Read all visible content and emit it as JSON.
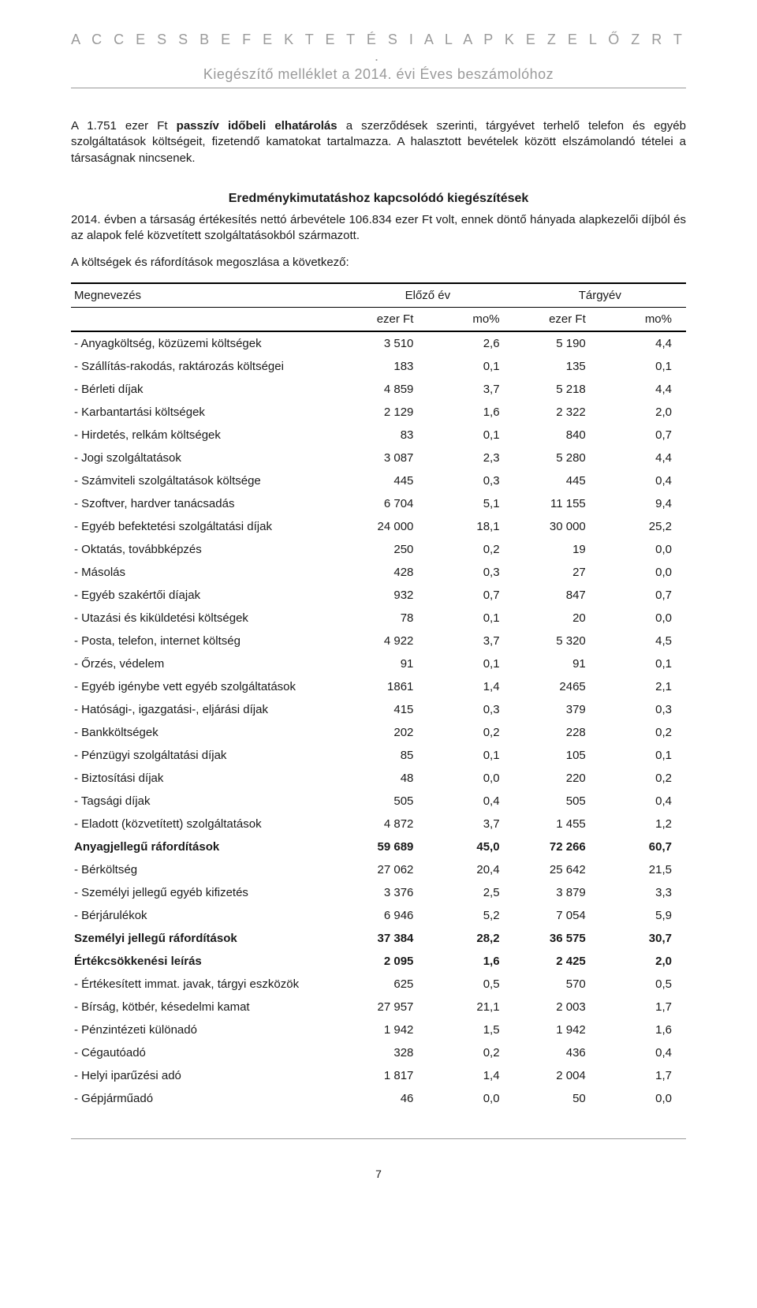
{
  "header": {
    "title": "A C C E S S   B E F E K T E T É S I   A L A P K E Z E L Ő   Z R T .",
    "subtitle": "Kiegészítő melléklet a 2014. évi Éves beszámolóhoz"
  },
  "body": {
    "para1_prefix": "A 1.751 ezer Ft ",
    "para1_bold": "passzív időbeli elhatárolás",
    "para1_suffix": " a szerződések szerinti, tárgyévet terhelő telefon és egyéb szolgáltatások költségeit, fizetendő kamatokat tartalmazza. A halasztott bevételek között elszámolandó tételei a társaságnak nincsenek.",
    "section_title": "Eredménykimutatáshoz kapcsolódó kiegészítések",
    "para2": "2014. évben a társaság értékesítés nettó árbevétele 106.834 ezer Ft volt, ennek döntő hányada alapkezelői díjból és az alapok felé közvetített szolgáltatásokból származott.",
    "para3": "A költségek és ráfordítások megoszlása a következő:"
  },
  "table": {
    "columns": {
      "name": "Megnevezés",
      "prev": "Előző év",
      "curr": "Tárgyév",
      "unit1": "ezer Ft",
      "pct1": "mo%",
      "unit2": "ezer Ft",
      "pct2": "mo%"
    },
    "col_widths": [
      "44%",
      "14%",
      "14%",
      "14%",
      "14%"
    ],
    "rows": [
      {
        "name": "- Anyagköltség, közüzemi költségek",
        "p_val": "3 510",
        "p_pct": "2,6",
        "c_val": "5 190",
        "c_pct": "4,4"
      },
      {
        "name": "- Szállítás-rakodás, raktározás költségei",
        "p_val": "183",
        "p_pct": "0,1",
        "c_val": "135",
        "c_pct": "0,1"
      },
      {
        "name": "- Bérleti díjak",
        "p_val": "4 859",
        "p_pct": "3,7",
        "c_val": "5 218",
        "c_pct": "4,4"
      },
      {
        "name": "- Karbantartási költségek",
        "p_val": "2 129",
        "p_pct": "1,6",
        "c_val": "2 322",
        "c_pct": "2,0"
      },
      {
        "name": "- Hirdetés, relkám költségek",
        "p_val": "83",
        "p_pct": "0,1",
        "c_val": "840",
        "c_pct": "0,7"
      },
      {
        "name": "- Jogi szolgáltatások",
        "p_val": "3 087",
        "p_pct": "2,3",
        "c_val": "5 280",
        "c_pct": "4,4"
      },
      {
        "name": "- Számviteli szolgáltatások költsége",
        "p_val": "445",
        "p_pct": "0,3",
        "c_val": "445",
        "c_pct": "0,4"
      },
      {
        "name": "- Szoftver, hardver tanácsadás",
        "p_val": "6 704",
        "p_pct": "5,1",
        "c_val": "11 155",
        "c_pct": "9,4"
      },
      {
        "name": "- Egyéb befektetési szolgáltatási díjak",
        "p_val": "24 000",
        "p_pct": "18,1",
        "c_val": "30 000",
        "c_pct": "25,2"
      },
      {
        "name": "- Oktatás, továbbképzés",
        "p_val": "250",
        "p_pct": "0,2",
        "c_val": "19",
        "c_pct": "0,0"
      },
      {
        "name": "- Másolás",
        "p_val": "428",
        "p_pct": "0,3",
        "c_val": "27",
        "c_pct": "0,0"
      },
      {
        "name": "- Egyéb szakértői díajak",
        "p_val": "932",
        "p_pct": "0,7",
        "c_val": "847",
        "c_pct": "0,7"
      },
      {
        "name": "- Utazási és kiküldetési költségek",
        "p_val": "78",
        "p_pct": "0,1",
        "c_val": "20",
        "c_pct": "0,0"
      },
      {
        "name": "- Posta, telefon, internet költség",
        "p_val": "4 922",
        "p_pct": "3,7",
        "c_val": "5 320",
        "c_pct": "4,5"
      },
      {
        "name": "- Őrzés, védelem",
        "p_val": "91",
        "p_pct": "0,1",
        "c_val": "91",
        "c_pct": "0,1"
      },
      {
        "name": "- Egyéb igénybe vett egyéb szolgáltatások",
        "p_val": "1861",
        "p_pct": "1,4",
        "c_val": "2465",
        "c_pct": "2,1"
      },
      {
        "name": "- Hatósági-, igazgatási-, eljárási díjak",
        "p_val": "415",
        "p_pct": "0,3",
        "c_val": "379",
        "c_pct": "0,3"
      },
      {
        "name": "- Bankköltségek",
        "p_val": "202",
        "p_pct": "0,2",
        "c_val": "228",
        "c_pct": "0,2"
      },
      {
        "name": "- Pénzügyi szolgáltatási díjak",
        "p_val": "85",
        "p_pct": "0,1",
        "c_val": "105",
        "c_pct": "0,1"
      },
      {
        "name": "- Biztosítási díjak",
        "p_val": "48",
        "p_pct": "0,0",
        "c_val": "220",
        "c_pct": "0,2"
      },
      {
        "name": "- Tagsági díjak",
        "p_val": "505",
        "p_pct": "0,4",
        "c_val": "505",
        "c_pct": "0,4"
      },
      {
        "name": "- Eladott (közvetített) szolgáltatások",
        "p_val": "4 872",
        "p_pct": "3,7",
        "c_val": "1 455",
        "c_pct": "1,2"
      },
      {
        "name": "Anyagjellegű ráfordítások",
        "p_val": "59 689",
        "p_pct": "45,0",
        "c_val": "72 266",
        "c_pct": "60,7",
        "bold": true
      },
      {
        "name": "- Bérköltség",
        "p_val": "27 062",
        "p_pct": "20,4",
        "c_val": "25 642",
        "c_pct": "21,5"
      },
      {
        "name": "- Személyi jellegű egyéb kifizetés",
        "p_val": "3 376",
        "p_pct": "2,5",
        "c_val": "3 879",
        "c_pct": "3,3"
      },
      {
        "name": "- Bérjárulékok",
        "p_val": "6 946",
        "p_pct": "5,2",
        "c_val": "7 054",
        "c_pct": "5,9"
      },
      {
        "name": "Személyi jellegű ráfordítások",
        "p_val": "37 384",
        "p_pct": "28,2",
        "c_val": "36 575",
        "c_pct": "30,7",
        "bold": true
      },
      {
        "name": "Értékcsökkenési leírás",
        "p_val": "2 095",
        "p_pct": "1,6",
        "c_val": "2 425",
        "c_pct": "2,0",
        "bold": true
      },
      {
        "name": "- Értékesített immat. javak, tárgyi eszközök",
        "p_val": "625",
        "p_pct": "0,5",
        "c_val": "570",
        "c_pct": "0,5"
      },
      {
        "name": "- Bírság, kötbér, késedelmi kamat",
        "p_val": "27 957",
        "p_pct": "21,1",
        "c_val": "2 003",
        "c_pct": "1,7"
      },
      {
        "name": "- Pénzintézeti különadó",
        "p_val": "1 942",
        "p_pct": "1,5",
        "c_val": "1 942",
        "c_pct": "1,6"
      },
      {
        "name": "- Cégautóadó",
        "p_val": "328",
        "p_pct": "0,2",
        "c_val": "436",
        "c_pct": "0,4"
      },
      {
        "name": "- Helyi iparűzési adó",
        "p_val": "1 817",
        "p_pct": "1,4",
        "c_val": "2 004",
        "c_pct": "1,7"
      },
      {
        "name": "- Gépjárműadó",
        "p_val": "46",
        "p_pct": "0,0",
        "c_val": "50",
        "c_pct": "0,0"
      }
    ]
  },
  "footer": {
    "page_number": "7"
  },
  "style": {
    "text_color": "#1a1a1a",
    "header_color": "#9a9a9a",
    "rule_color": "#000000",
    "body_fontsize": 15,
    "title_fontsize": 18
  }
}
